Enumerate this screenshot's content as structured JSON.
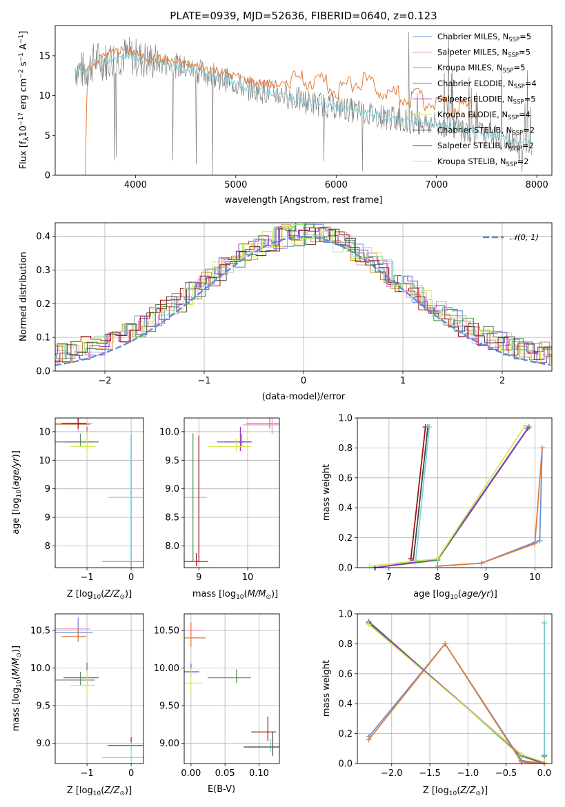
{
  "chart_data": [
    {
      "type": "line",
      "title": "PLATE=0939, MJD=52636, FIBERID=0640, z=0.123",
      "xlabel": "wavelength [Angstrom, rest frame]",
      "ylabel": "Flux [f_λ10^-17 erg cm^-2 s^-1 A^-1]",
      "xlim": [
        3200,
        8150
      ],
      "ylim": [
        0,
        18.8
      ],
      "xticks": [
        4000,
        5000,
        6000,
        7000,
        8000
      ],
      "yticks": [
        0,
        5,
        10,
        15
      ],
      "grid": false,
      "legend_position": "top-right",
      "series": [
        {
          "name": "Chabrier MILES, N_SSP=5",
          "color": "#6a8fd4"
        },
        {
          "name": "Salpeter MILES, N_SSP=5",
          "color": "#e28ec6"
        },
        {
          "name": "Kroupa MILES, N_SSP=5",
          "color": "#c9862a"
        },
        {
          "name": "Chabrier ELODIE, N_SSP=4",
          "color": "#4f8c56"
        },
        {
          "name": "Salpeter ELODIE, N_SSP=5",
          "color": "#9b30c9"
        },
        {
          "name": "Kroupa ELODIE, N_SSP=4",
          "color": "#d1ea55"
        },
        {
          "name": "Chabrier STELIB, N_SSP=2",
          "color": "#444444"
        },
        {
          "name": "Salpeter STELIB, N_SSP=2",
          "color": "#a01010"
        },
        {
          "name": "Kroupa STELIB, N_SSP=2",
          "color": "#9fe09a"
        }
      ],
      "data_color": "#808080",
      "model_color": "#7fd3d8",
      "model_alt_color": "#e07b39",
      "points": [
        [
          3400,
          13.5
        ],
        [
          3500,
          13.0
        ],
        [
          3600,
          14.5
        ],
        [
          3700,
          14.3
        ],
        [
          3800,
          14.8
        ],
        [
          3900,
          15.0
        ],
        [
          4000,
          14.8
        ],
        [
          4100,
          14.5
        ],
        [
          4300,
          14.0
        ],
        [
          4500,
          13.5
        ],
        [
          4700,
          12.8
        ],
        [
          4900,
          12.0
        ],
        [
          5100,
          11.0
        ],
        [
          5300,
          10.5
        ],
        [
          5500,
          10.0
        ],
        [
          5700,
          9.2
        ],
        [
          5900,
          8.8
        ],
        [
          6100,
          8.3
        ],
        [
          6300,
          7.8
        ],
        [
          6500,
          7.3
        ],
        [
          6700,
          6.9
        ],
        [
          6900,
          6.5
        ],
        [
          7100,
          6.2
        ],
        [
          7300,
          5.6
        ],
        [
          7500,
          5.1
        ],
        [
          7700,
          4.6
        ],
        [
          7900,
          4.0
        ]
      ],
      "alt_points": [
        [
          3500,
          0.0
        ],
        [
          3520,
          13.2
        ],
        [
          3700,
          15.2
        ],
        [
          3900,
          15.8
        ],
        [
          4100,
          14.8
        ],
        [
          4400,
          14.2
        ],
        [
          4800,
          13.2
        ],
        [
          5200,
          11.6
        ],
        [
          5600,
          11.2
        ],
        [
          5800,
          11.4
        ],
        [
          6000,
          9.8
        ],
        [
          6200,
          11.2
        ],
        [
          6400,
          10.4
        ],
        [
          6600,
          9.2
        ],
        [
          6800,
          9.0
        ],
        [
          7000,
          8.2
        ],
        [
          7200,
          7.8
        ],
        [
          7400,
          7.6
        ]
      ]
    },
    {
      "type": "line",
      "xlabel": "(data-model)/error",
      "ylabel": "Normed distribution",
      "xlim": [
        -2.5,
        2.5
      ],
      "ylim": [
        0,
        0.44
      ],
      "xticks": [
        -2,
        -1,
        0,
        1,
        2
      ],
      "yticks": [
        0.0,
        0.1,
        0.2,
        0.3,
        0.4
      ],
      "grid": true,
      "legend_position": "top-right",
      "reference": {
        "name": "𝒩(0, 1)",
        "color": "#5b8bd9"
      },
      "series": [
        {
          "name": "Chabrier MILES",
          "color": "#6a8fd4",
          "offset": 0.0
        },
        {
          "name": "Salpeter MILES",
          "color": "#e28ec6",
          "offset": 0.12
        },
        {
          "name": "Kroupa MILES",
          "color": "#c9862a",
          "offset": 0.24
        },
        {
          "name": "Chabrier ELODIE",
          "color": "#4f8c56",
          "offset": 0.36
        },
        {
          "name": "Salpeter ELODIE",
          "color": "#9b30c9",
          "offset": 0.48
        },
        {
          "name": "Kroupa ELODIE",
          "color": "#d1ea55",
          "offset": 0.6
        },
        {
          "name": "Chabrier STELIB",
          "color": "#444444",
          "offset": 0.72
        },
        {
          "name": "Salpeter STELIB",
          "color": "#a01010",
          "offset": 0.84
        },
        {
          "name": "Kroupa STELIB",
          "color": "#9fe09a",
          "offset": 0.96
        }
      ]
    },
    {
      "type": "scatter",
      "xlabel": "Z [log10(Z/Z⊙)]",
      "ylabel": "age [log10(age/yr)]",
      "xlim": [
        -1.72,
        0.28
      ],
      "ylim": [
        7.62,
        10.24
      ],
      "xticks": [
        -1,
        0
      ],
      "yticks": [
        8.0,
        8.5,
        9.0,
        9.5,
        10.0
      ],
      "points": [
        {
          "x": -1.2,
          "y": 10.13,
          "color": "#e07b39"
        },
        {
          "x": -1.2,
          "y": 10.15,
          "color": "#e28ec6"
        },
        {
          "x": -1.2,
          "y": 10.14,
          "color": "#a01010"
        },
        {
          "x": -1.0,
          "y": 9.82,
          "color": "#9b30c9"
        },
        {
          "x": -1.15,
          "y": 9.82,
          "color": "#4f8c56"
        },
        {
          "x": -1.0,
          "y": 9.74,
          "color": "#d1ea55"
        },
        {
          "x": 0.0,
          "y": 8.85,
          "color": "#7fd3d8"
        },
        {
          "x": 0.0,
          "y": 7.73,
          "color": "#6a8fd4"
        }
      ]
    },
    {
      "type": "scatter",
      "xlabel": "mass [log10(M/M⊙)]",
      "ylabel": "",
      "xlim": [
        8.7,
        10.65
      ],
      "ylim": [
        7.62,
        10.24
      ],
      "xticks": [
        9,
        10
      ],
      "yticks": [
        8.0,
        8.5,
        9.0,
        9.5,
        10.0
      ],
      "points": [
        {
          "x": 10.45,
          "y": 10.14,
          "color": "#e07b39"
        },
        {
          "x": 10.5,
          "y": 10.12,
          "color": "#e28ec6"
        },
        {
          "x": 9.88,
          "y": 9.82,
          "color": "#4f8c56"
        },
        {
          "x": 9.85,
          "y": 9.82,
          "color": "#9b30c9"
        },
        {
          "x": 9.77,
          "y": 9.74,
          "color": "#d1ea55"
        },
        {
          "x": 9.0,
          "y": 8.85,
          "color": "#7fd3d8"
        },
        {
          "x": 8.95,
          "y": 7.73,
          "color": "#a01010"
        }
      ]
    },
    {
      "type": "line",
      "xlabel": "age [log10(age/yr)]",
      "ylabel": "mass weight",
      "xlim": [
        6.35,
        10.35
      ],
      "ylim": [
        0,
        1.0
      ],
      "xticks": [
        7,
        8,
        9,
        10
      ],
      "yticks": [
        0.0,
        0.2,
        0.4,
        0.6,
        0.8,
        1.0
      ],
      "grid": true,
      "series": [
        {
          "name": "Chabrier STELIB",
          "color": "#444444",
          "x": [
            7.5,
            7.8
          ],
          "y": [
            0.05,
            0.94
          ]
        },
        {
          "name": "Salpeter STELIB",
          "color": "#a01010",
          "x": [
            7.45,
            7.75
          ],
          "y": [
            0.06,
            0.94
          ]
        },
        {
          "name": "Kroupa STELIB",
          "color": "#7fd3d8",
          "x": [
            7.55,
            7.83
          ],
          "y": [
            0.05,
            0.94
          ]
        },
        {
          "name": "Chabrier ELODIE",
          "color": "#4f8c56",
          "x": [
            6.7,
            8.0,
            9.88
          ],
          "y": [
            0.0,
            0.05,
            0.94
          ]
        },
        {
          "name": "Salpeter ELODIE",
          "color": "#9b30c9",
          "x": [
            6.72,
            8.0,
            9.85
          ],
          "y": [
            0.0,
            0.06,
            0.93
          ]
        },
        {
          "name": "Kroupa ELODIE",
          "color": "#d1ea55",
          "x": [
            6.6,
            8.0,
            9.8
          ],
          "y": [
            0.01,
            0.06,
            0.95
          ]
        },
        {
          "name": "Chabrier MILES",
          "color": "#6a8fd4",
          "x": [
            8.0,
            8.9,
            10.0,
            10.1,
            10.15
          ],
          "y": [
            0.01,
            0.03,
            0.17,
            0.18,
            0.8
          ]
        },
        {
          "name": "Kroupa MILES",
          "color": "#e07b39",
          "x": [
            8.0,
            8.9,
            10.0,
            10.15
          ],
          "y": [
            0.01,
            0.03,
            0.16,
            0.8
          ]
        }
      ]
    },
    {
      "type": "scatter",
      "xlabel": "Z [log10(Z/Z⊙)]",
      "ylabel": "mass [log10(M/M⊙)]",
      "xlim": [
        -1.72,
        0.28
      ],
      "ylim": [
        8.73,
        10.72
      ],
      "xticks": [
        -1,
        0
      ],
      "yticks": [
        9.0,
        9.5,
        10.0,
        10.5
      ],
      "points": [
        {
          "x": -1.2,
          "y": 10.52,
          "color": "#e28ec6"
        },
        {
          "x": -1.2,
          "y": 10.47,
          "color": "#6a8fd4"
        },
        {
          "x": -1.2,
          "y": 10.42,
          "color": "#e07b39"
        },
        {
          "x": -1.0,
          "y": 9.87,
          "color": "#9b30c9"
        },
        {
          "x": -1.15,
          "y": 9.84,
          "color": "#4f8c56"
        },
        {
          "x": -1.0,
          "y": 9.77,
          "color": "#d1ea55"
        },
        {
          "x": 0.0,
          "y": 8.97,
          "color": "#a01010"
        },
        {
          "x": 0.0,
          "y": 8.81,
          "color": "#7fd3d8"
        }
      ]
    },
    {
      "type": "scatter",
      "xlabel": "E(B-V)",
      "ylabel": "",
      "xlim": [
        -0.01,
        0.13
      ],
      "ylim": [
        8.73,
        10.72
      ],
      "xticks": [
        0.0,
        0.05,
        0.1
      ],
      "yticks": [
        9.0,
        9.5,
        10.0,
        10.5
      ],
      "points": [
        {
          "x": 0.0,
          "y": 10.5,
          "color": "#e28ec6"
        },
        {
          "x": 0.0,
          "y": 10.4,
          "color": "#e07b39"
        },
        {
          "x": 0.0,
          "y": 9.95,
          "color": "#9b30c9"
        },
        {
          "x": 0.0,
          "y": 9.8,
          "color": "#d1ea55"
        },
        {
          "x": 0.067,
          "y": 9.87,
          "color": "#4f8c56"
        },
        {
          "x": 0.113,
          "y": 9.15,
          "color": "#a01010"
        },
        {
          "x": 0.117,
          "y": 8.95,
          "color": "#7fd3d8"
        },
        {
          "x": 0.12,
          "y": 8.95,
          "color": "#444444"
        }
      ]
    },
    {
      "type": "line",
      "xlabel": "Z [log10(Z/Z⊙)]",
      "ylabel": "mass weight",
      "xlim": [
        -2.45,
        0.1
      ],
      "ylim": [
        0,
        1.0
      ],
      "xticks": [
        -2.0,
        -1.5,
        -1.0,
        -0.5,
        0.0
      ],
      "yticks": [
        0.0,
        0.2,
        0.4,
        0.6,
        0.8,
        1.0
      ],
      "grid": true,
      "series": [
        {
          "name": "Chabrier ELODIE",
          "color": "#4f8c56",
          "x": [
            -2.3,
            -0.3,
            0.0
          ],
          "y": [
            0.95,
            0.05,
            0.0
          ]
        },
        {
          "name": "Salpeter ELODIE",
          "color": "#9b30c9",
          "x": [
            -2.3,
            -0.3,
            0.0
          ],
          "y": [
            0.94,
            0.06,
            0.0
          ]
        },
        {
          "name": "Kroupa ELODIE",
          "color": "#d1ea55",
          "x": [
            -2.3,
            -0.3,
            0.0
          ],
          "y": [
            0.93,
            0.06,
            0.01
          ]
        },
        {
          "name": "Chabrier MILES",
          "color": "#6a8fd4",
          "x": [
            -2.3,
            -1.3,
            -0.3,
            0.0
          ],
          "y": [
            0.18,
            0.8,
            0.02,
            0.0
          ]
        },
        {
          "name": "Kroupa MILES",
          "color": "#e07b39",
          "x": [
            -2.3,
            -1.3,
            -0.3,
            0.0
          ],
          "y": [
            0.16,
            0.8,
            0.01,
            0.0
          ]
        },
        {
          "name": "Chabrier STELIB",
          "color": "#444444",
          "x": [
            0.0,
            0.0
          ],
          "y": [
            0.05,
            0.94
          ]
        },
        {
          "name": "Kroupa STELIB",
          "color": "#7fd3d8",
          "x": [
            0.0,
            0.0
          ],
          "y": [
            0.06,
            0.94
          ]
        }
      ]
    }
  ]
}
